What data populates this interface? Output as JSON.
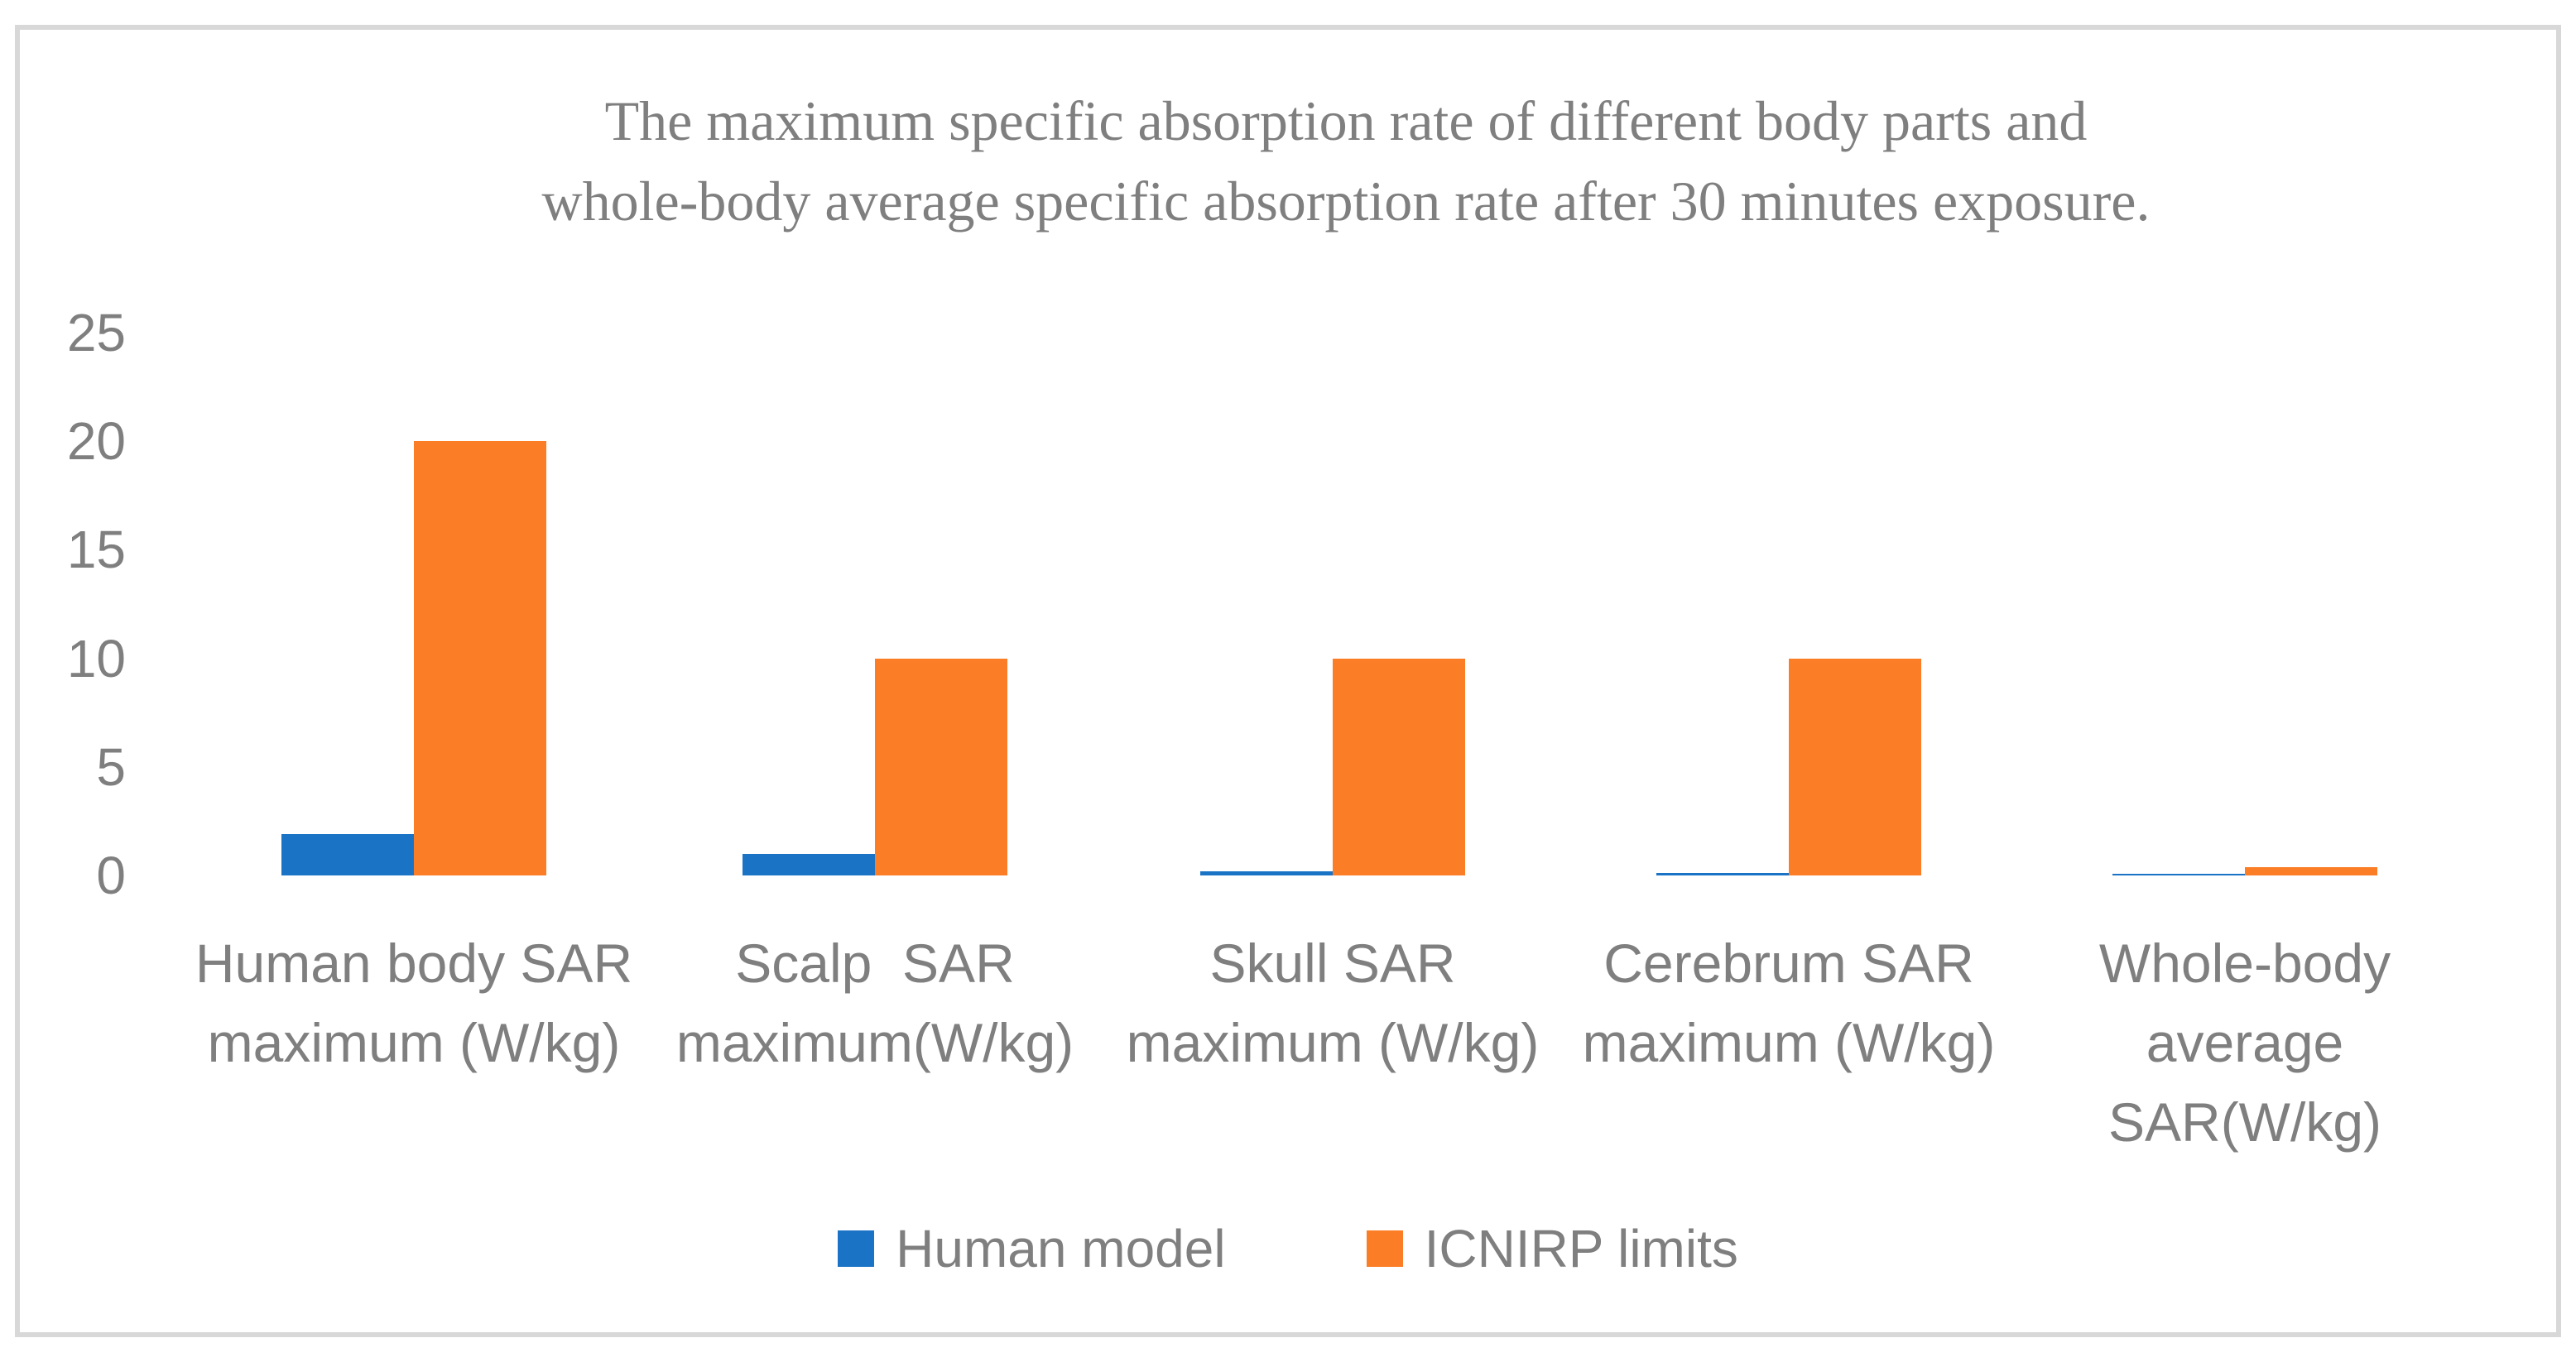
{
  "frame": {
    "border_color": "#d8d8d8",
    "background_color": "#ffffff"
  },
  "chart_data": {
    "type": "bar",
    "title": "The maximum specific absorption rate of different body parts and whole-body average specific absorption rate after 30 minutes exposure.",
    "title_lines": [
      "The maximum specific absorption rate of different body parts and",
      "whole-body average specific absorption rate after 30 minutes exposure."
    ],
    "categories": [
      "Human body SAR maximum (W/kg)",
      "Scalp  SAR maximum(W/kg)",
      "Skull SAR maximum (W/kg)",
      "Cerebrum SAR maximum (W/kg)",
      "Whole-body average SAR(W/kg)"
    ],
    "category_lines": [
      [
        "Human body SAR",
        "maximum (W/kg)"
      ],
      [
        "Scalp  SAR",
        "maximum(W/kg)"
      ],
      [
        "Skull SAR",
        "maximum (W/kg)"
      ],
      [
        "Cerebrum SAR",
        "maximum (W/kg)"
      ],
      [
        "Whole-body",
        "average",
        "SAR(W/kg)"
      ]
    ],
    "series": [
      {
        "name": "Human model",
        "color": "#1b73c6",
        "values": [
          1.9,
          1.0,
          0.2,
          0.1,
          0.08
        ]
      },
      {
        "name": "ICNIRP limits",
        "color": "#fb7d26",
        "values": [
          20,
          10,
          10,
          10,
          0.4
        ]
      }
    ],
    "y_ticks": [
      0,
      5,
      10,
      15,
      20,
      25
    ],
    "ylim": [
      0,
      25
    ],
    "xlabel": "",
    "ylabel": "",
    "grid": false,
    "axis_lines": false,
    "legend_position": "bottom",
    "text_color": "#7f7f7f",
    "title_color": "#7f7f7f"
  }
}
